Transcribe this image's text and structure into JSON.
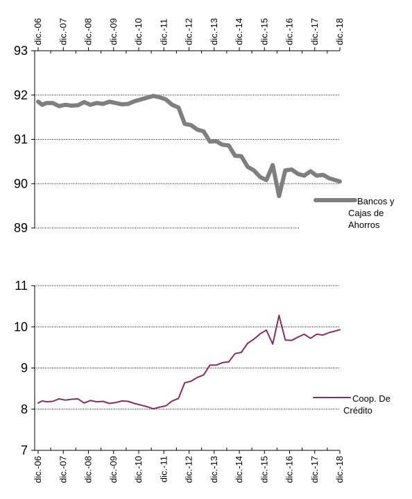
{
  "chart_data": [
    {
      "type": "line",
      "title": "",
      "xlabel": "",
      "ylabel": "",
      "x_tick_labels": [
        "dic.-06",
        "dic.-07",
        "dic.-08",
        "dic.-09",
        "dic.-10",
        "dic.-11",
        "dic.-12",
        "dic.-13",
        "dic.-14",
        "dic.-15",
        "dic.-16",
        "dic.-17",
        "dic.-18"
      ],
      "ylim": [
        89,
        93
      ],
      "yticks": [
        "89",
        "90",
        "91",
        "92",
        "93"
      ],
      "grid": "horizontal dotted",
      "legend_position": "right",
      "series": [
        {
          "name": "Bancos y Cajas de Ahorros",
          "color": "#7f7f7f",
          "legend_lines": [
            "Bancos y",
            "Cajas de",
            "Ahorros"
          ],
          "points": [
            [
              2006.92,
              91.85
            ],
            [
              2007.08,
              91.78
            ],
            [
              2007.25,
              91.82
            ],
            [
              2007.5,
              91.82
            ],
            [
              2007.75,
              91.75
            ],
            [
              2008.0,
              91.78
            ],
            [
              2008.25,
              91.76
            ],
            [
              2008.5,
              91.77
            ],
            [
              2008.75,
              91.84
            ],
            [
              2009.0,
              91.78
            ],
            [
              2009.25,
              91.82
            ],
            [
              2009.5,
              91.8
            ],
            [
              2009.75,
              91.85
            ],
            [
              2010.0,
              91.82
            ],
            [
              2010.25,
              91.79
            ],
            [
              2010.5,
              91.8
            ],
            [
              2010.75,
              91.86
            ],
            [
              2011.0,
              91.9
            ],
            [
              2011.25,
              91.94
            ],
            [
              2011.5,
              91.98
            ],
            [
              2011.75,
              91.95
            ],
            [
              2012.0,
              91.9
            ],
            [
              2012.25,
              91.78
            ],
            [
              2012.5,
              91.72
            ],
            [
              2012.75,
              91.35
            ],
            [
              2013.0,
              91.32
            ],
            [
              2013.25,
              91.22
            ],
            [
              2013.5,
              91.18
            ],
            [
              2013.75,
              90.95
            ],
            [
              2014.0,
              90.96
            ],
            [
              2014.25,
              90.88
            ],
            [
              2014.5,
              90.86
            ],
            [
              2014.75,
              90.63
            ],
            [
              2015.0,
              90.62
            ],
            [
              2015.25,
              90.38
            ],
            [
              2015.5,
              90.3
            ],
            [
              2015.75,
              90.15
            ],
            [
              2016.0,
              90.08
            ],
            [
              2016.25,
              90.42
            ],
            [
              2016.5,
              89.72
            ],
            [
              2016.75,
              90.3
            ],
            [
              2017.0,
              90.32
            ],
            [
              2017.25,
              90.22
            ],
            [
              2017.5,
              90.18
            ],
            [
              2017.75,
              90.28
            ],
            [
              2018.0,
              90.18
            ],
            [
              2018.25,
              90.2
            ],
            [
              2018.5,
              90.12
            ],
            [
              2018.75,
              90.08
            ],
            [
              2018.92,
              90.05
            ]
          ]
        }
      ]
    },
    {
      "type": "line",
      "title": "",
      "xlabel": "",
      "ylabel": "",
      "x_tick_labels": [
        "dic.-06",
        "dic.-07",
        "dic.-08",
        "dic.-09",
        "dic.-10",
        "dic.-11",
        "dic.-12",
        "dic.-13",
        "dic.-14",
        "dic.-15",
        "dic.-16",
        "dic.-17",
        "dic.-18"
      ],
      "ylim": [
        7,
        11
      ],
      "yticks": [
        "7",
        "8",
        "9",
        "10",
        "11"
      ],
      "grid": "horizontal dotted",
      "legend_position": "right",
      "series": [
        {
          "name": "Coop. De Crédito",
          "color": "#8b2b5e",
          "legend_lines": [
            "Coop. De",
            "Crédito"
          ],
          "points": [
            [
              2006.92,
              8.15
            ],
            [
              2007.08,
              8.2
            ],
            [
              2007.25,
              8.18
            ],
            [
              2007.5,
              8.19
            ],
            [
              2007.75,
              8.25
            ],
            [
              2008.0,
              8.22
            ],
            [
              2008.25,
              8.24
            ],
            [
              2008.5,
              8.25
            ],
            [
              2008.75,
              8.15
            ],
            [
              2009.0,
              8.21
            ],
            [
              2009.25,
              8.18
            ],
            [
              2009.5,
              8.19
            ],
            [
              2009.75,
              8.14
            ],
            [
              2010.0,
              8.16
            ],
            [
              2010.25,
              8.2
            ],
            [
              2010.5,
              8.19
            ],
            [
              2010.75,
              8.14
            ],
            [
              2011.0,
              8.1
            ],
            [
              2011.25,
              8.06
            ],
            [
              2011.5,
              8.01
            ],
            [
              2011.75,
              8.05
            ],
            [
              2012.0,
              8.08
            ],
            [
              2012.25,
              8.2
            ],
            [
              2012.5,
              8.26
            ],
            [
              2012.75,
              8.64
            ],
            [
              2013.0,
              8.68
            ],
            [
              2013.25,
              8.77
            ],
            [
              2013.5,
              8.83
            ],
            [
              2013.75,
              9.07
            ],
            [
              2014.0,
              9.07
            ],
            [
              2014.25,
              9.13
            ],
            [
              2014.5,
              9.15
            ],
            [
              2014.75,
              9.35
            ],
            [
              2015.0,
              9.38
            ],
            [
              2015.25,
              9.6
            ],
            [
              2015.5,
              9.7
            ],
            [
              2015.75,
              9.83
            ],
            [
              2016.0,
              9.92
            ],
            [
              2016.25,
              9.58
            ],
            [
              2016.5,
              10.28
            ],
            [
              2016.75,
              9.68
            ],
            [
              2017.0,
              9.67
            ],
            [
              2017.25,
              9.75
            ],
            [
              2017.5,
              9.82
            ],
            [
              2017.75,
              9.72
            ],
            [
              2018.0,
              9.82
            ],
            [
              2018.25,
              9.8
            ],
            [
              2018.5,
              9.86
            ],
            [
              2018.75,
              9.9
            ],
            [
              2018.92,
              9.93
            ]
          ]
        }
      ]
    }
  ]
}
